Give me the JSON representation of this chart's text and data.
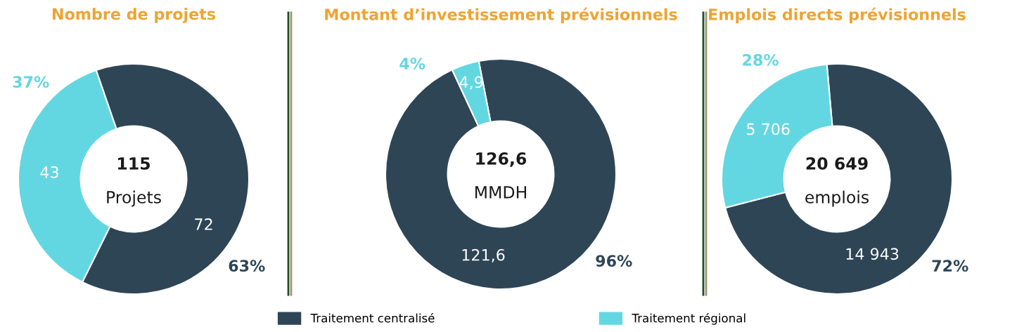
{
  "chart_data": [
    {
      "type": "donut",
      "title": "Nombre de projets",
      "categories": [
        null,
        null
      ],
      "values": [
        72,
        43
      ],
      "colors": [
        "#2e4556",
        "#63d7e1"
      ],
      "value_labels": [
        "72",
        "43"
      ],
      "annotations": [
        "115",
        "Projets",
        "63%",
        "37%"
      ]
    },
    {
      "type": "donut",
      "title": "Montant d’investissement prévisionnels",
      "categories": [
        "Traitement centralisé",
        "Traitement régional"
      ],
      "values": [
        121.6,
        4.9
      ],
      "colors": [
        "#2e4556",
        "#63d7e1"
      ],
      "value_labels": [
        "121,6",
        "4,9"
      ],
      "annotations": [
        "126,6",
        "MMDH",
        "96%",
        "4%"
      ],
      "legend": "bottom"
    },
    {
      "type": "donut",
      "title": "Emplois directs prévisionnels",
      "categories": [
        null,
        null
      ],
      "values": [
        14943,
        5706
      ],
      "colors": [
        "#2e4556",
        "#63d7e1"
      ],
      "value_labels": [
        "14 943",
        "5 706"
      ],
      "annotations": [
        "20 649",
        "emplois",
        "72%",
        "28%"
      ]
    }
  ]
}
